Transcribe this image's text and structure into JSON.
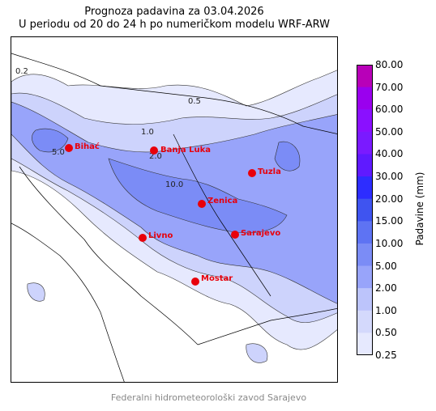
{
  "title": {
    "line1": "Prognoza padavina za 03.04.2026",
    "line2": "U periodu od 20 do 24 h po numeričkom modelu WRF-ARW"
  },
  "colorbar": {
    "label": "Padavine (mm)",
    "ticks": [
      "80.00",
      "70.00",
      "60.00",
      "50.00",
      "40.00",
      "30.00",
      "20.00",
      "15.00",
      "10.00",
      "5.00",
      "2.00",
      "1.00",
      "0.50",
      "0.25"
    ],
    "colors": [
      "#b800b8",
      "#9a00ee",
      "#8a10ff",
      "#7a1aff",
      "#5f1aff",
      "#2d2dff",
      "#3f54f0",
      "#5e73f3",
      "#7b8cf6",
      "#98a4fa",
      "#bcc4fb",
      "#d4d9fc",
      "#e6e9fe"
    ]
  },
  "map": {
    "fill_colors": {
      "light": "#e6e9fe",
      "l2": "#cdd3fc",
      "mid": "#98a4fa",
      "dark": "#7b8cf6"
    },
    "cities": [
      {
        "name": "Bihać"
      },
      {
        "name": "Banja Luka"
      },
      {
        "name": "Tuzla"
      },
      {
        "name": "Zenica"
      },
      {
        "name": "Livno"
      },
      {
        "name": "Sarajevo"
      },
      {
        "name": "Mostar"
      }
    ],
    "contour_labels": [
      "0.2",
      "0.5",
      "1.0",
      "2.0",
      "5.0",
      "10.0"
    ]
  },
  "credit": "Federalni hidrometeorološki zavod Sarajevo"
}
